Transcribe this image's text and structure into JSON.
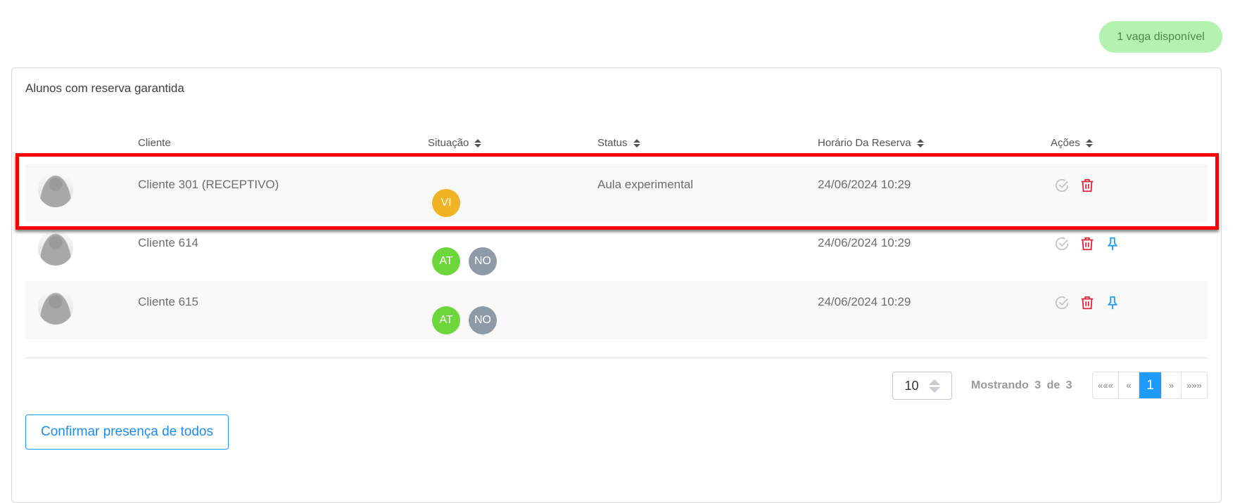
{
  "availability_badge": "1 vaga disponível",
  "card_title": "Alunos com reserva garantida",
  "columns": [
    {
      "label": "Cliente",
      "sortable": false
    },
    {
      "label": "Situação",
      "sortable": true
    },
    {
      "label": "Status",
      "sortable": true
    },
    {
      "label": "Horário Da Reserva",
      "sortable": true
    },
    {
      "label": "Ações",
      "sortable": true
    }
  ],
  "rows": [
    {
      "cliente": "Cliente 301 (RECEPTIVO)",
      "situacao": [
        {
          "code": "VI",
          "color": "#f0b323"
        }
      ],
      "status": "Aula experimental",
      "horario": "24/06/2024 10:29",
      "actions": [
        "check-icon",
        "trash-icon"
      ],
      "highlighted": true
    },
    {
      "cliente": "Cliente 614",
      "situacao": [
        {
          "code": "AT",
          "color": "#6dd63a"
        },
        {
          "code": "NO",
          "color": "#8e9aa6"
        }
      ],
      "status": "",
      "horario": "24/06/2024 10:29",
      "actions": [
        "check-icon",
        "trash-icon",
        "pin-icon"
      ]
    },
    {
      "cliente": "Cliente 615",
      "situacao": [
        {
          "code": "AT",
          "color": "#6dd63a"
        },
        {
          "code": "NO",
          "color": "#8e9aa6"
        }
      ],
      "status": "",
      "horario": "24/06/2024 10:29",
      "actions": [
        "check-icon",
        "trash-icon",
        "pin-icon"
      ]
    }
  ],
  "pagination": {
    "page_size": "10",
    "showing": "Mostrando 3 de 3",
    "buttons": [
      "«««",
      "«",
      "1",
      "»",
      "»»»"
    ],
    "current": "1"
  },
  "confirm_button": "Confirmar presença de todos",
  "colors": {
    "accent": "#1e9bff",
    "danger": "#e0253a",
    "highlight": "#ff0000"
  }
}
